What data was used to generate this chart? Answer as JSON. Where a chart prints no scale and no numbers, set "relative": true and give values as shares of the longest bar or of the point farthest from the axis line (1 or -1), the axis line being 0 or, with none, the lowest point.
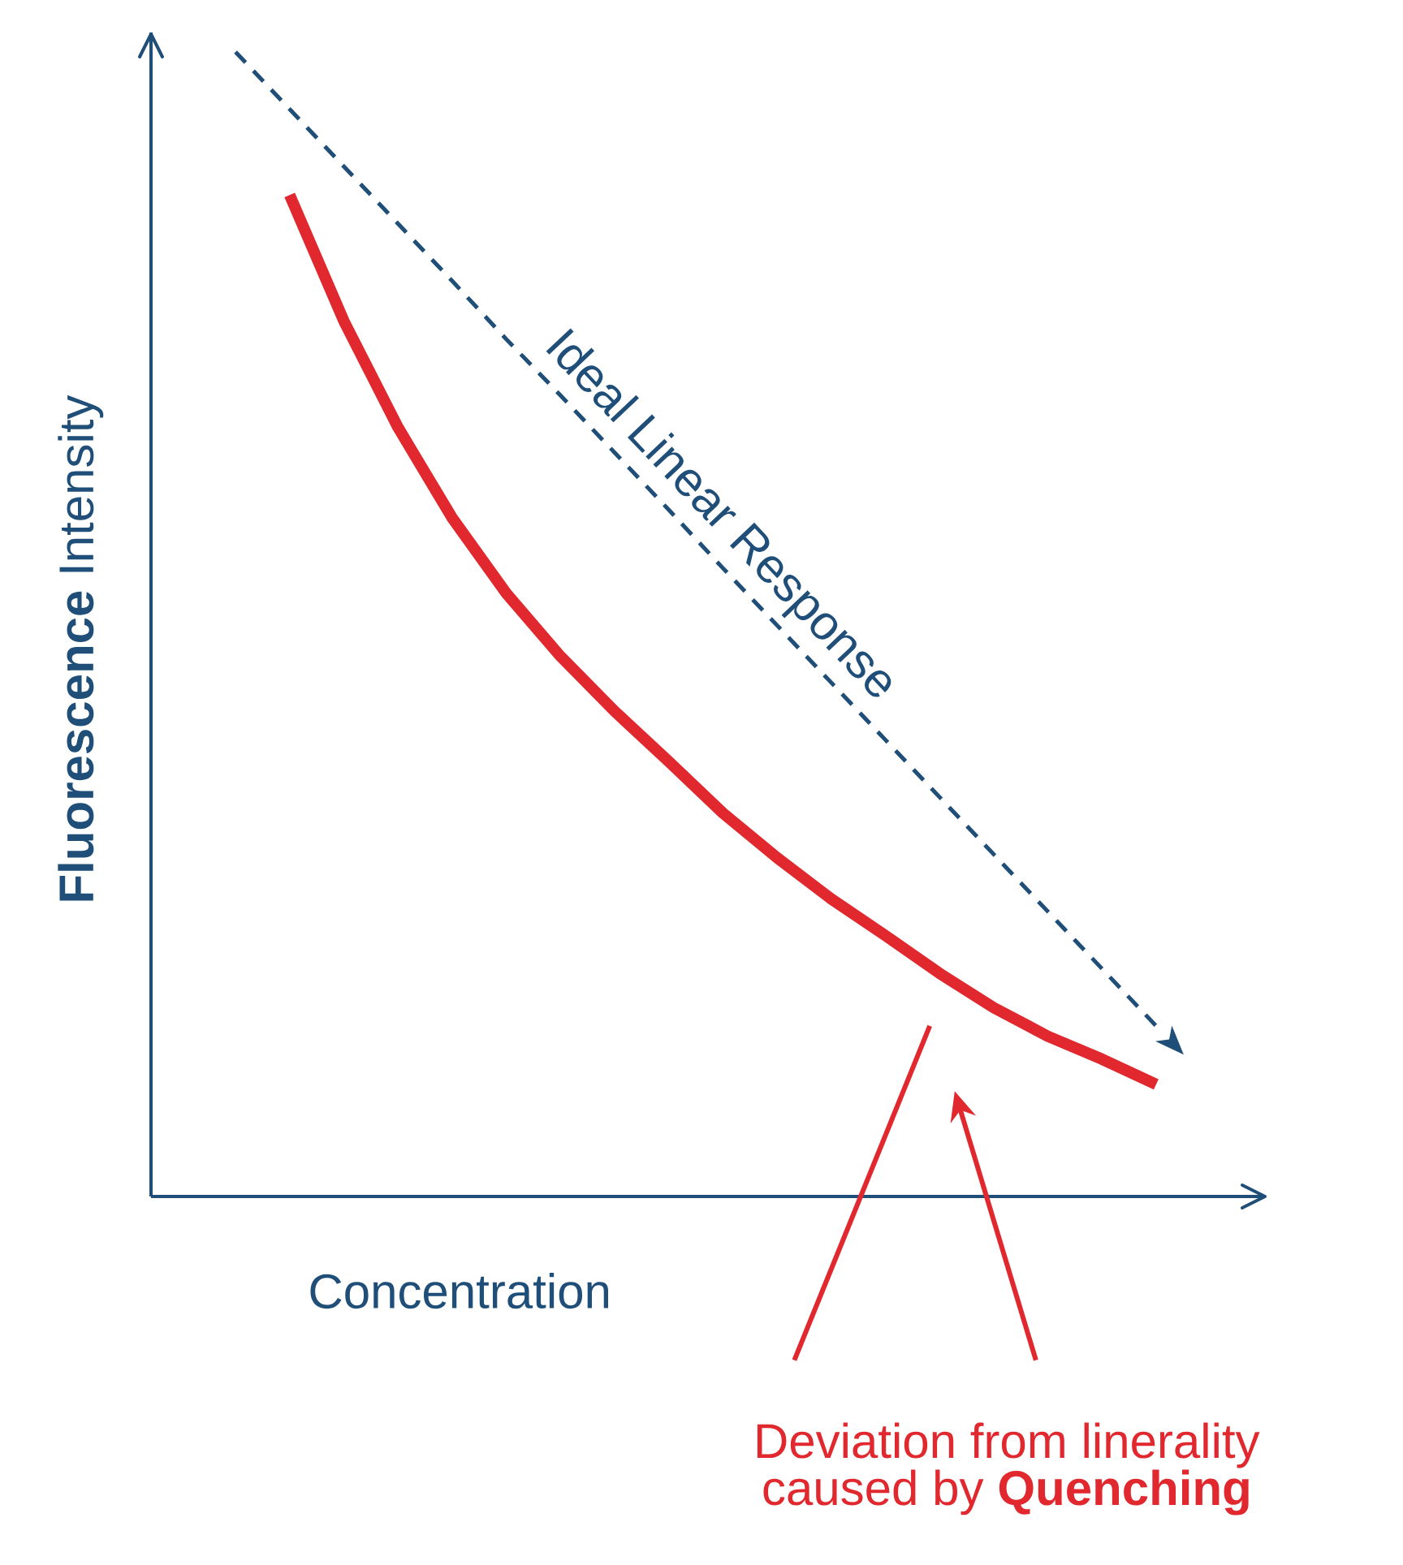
{
  "chart_data": {
    "type": "line",
    "relative": true,
    "xlabel": "Concentration",
    "ylabel": "**Fluorescence** Intensity",
    "marker": "none",
    "categories": [
      null,
      null,
      null,
      null,
      null,
      null,
      null,
      null,
      null,
      null,
      null,
      null,
      null,
      null,
      null,
      null,
      null,
      null
    ],
    "series": [
      {
        "color": "#1f4e79",
        "line_style": "dashed",
        "values": [
          1.0,
          0.95,
          0.9,
          0.85,
          0.8,
          0.749,
          0.7,
          0.65,
          0.6,
          0.549,
          0.499,
          0.449,
          0.399,
          0.349,
          0.299,
          0.249,
          0.199,
          0.149
        ]
      },
      {
        "color": "#e0282e",
        "line_style": "solid",
        "values": [
          null,
          0.875,
          0.765,
          0.672,
          0.593,
          0.527,
          0.472,
          0.424,
          0.38,
          0.335,
          0.296,
          0.26,
          0.228,
          0.195,
          0.165,
          0.14,
          0.12,
          0.098
        ]
      }
    ],
    "annotations": [
      "Ideal Linear Response",
      "Deviation from linerality caused by **Quenching**"
    ]
  }
}
